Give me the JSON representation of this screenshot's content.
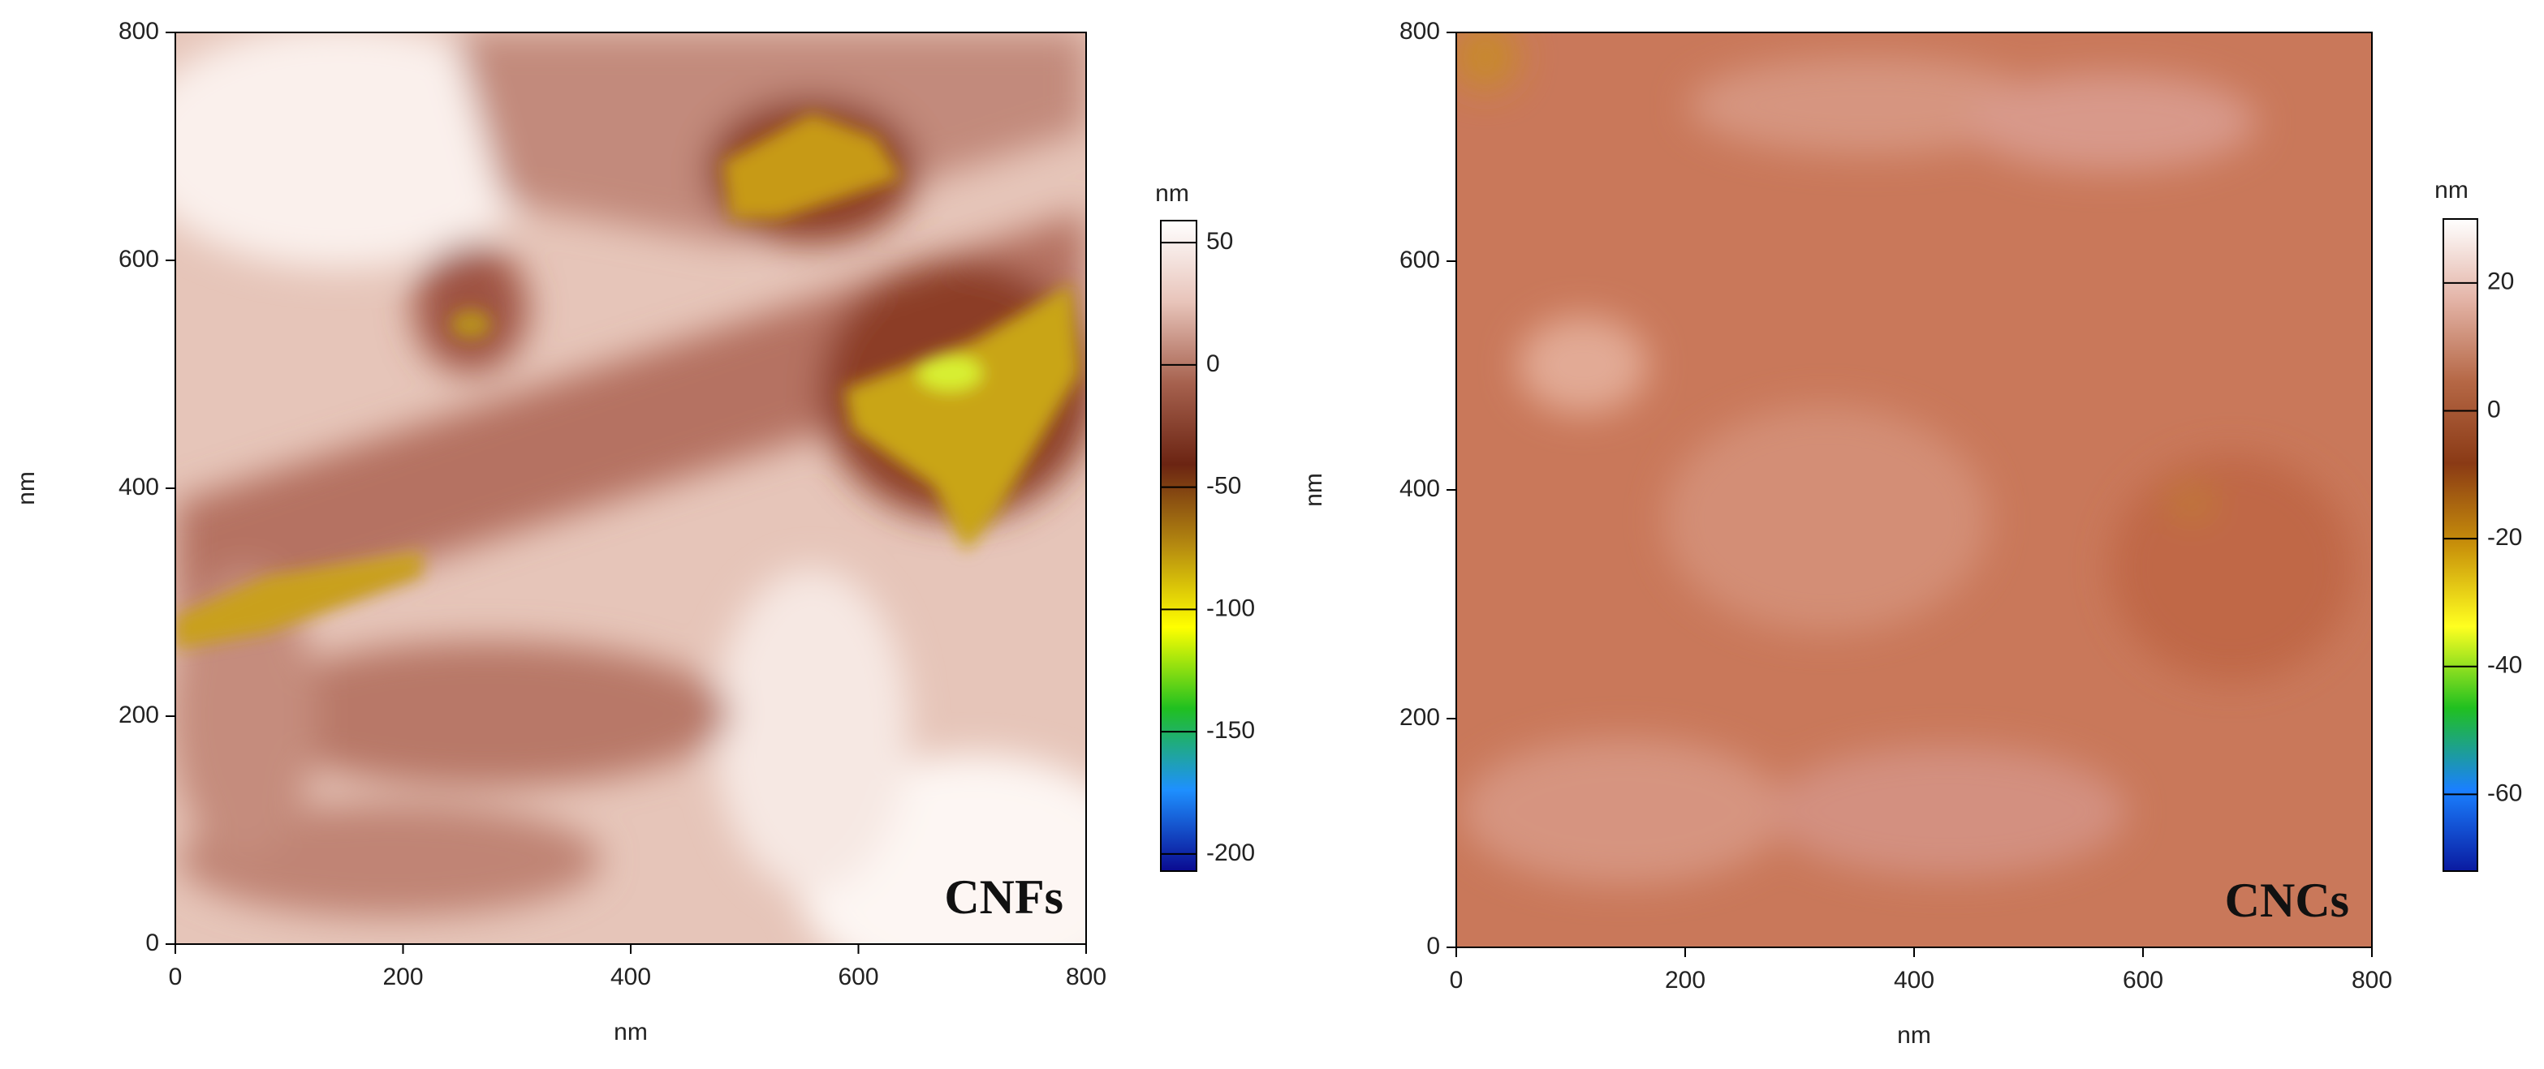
{
  "chart_data": [
    {
      "type": "image",
      "label": "CNFs",
      "xlabel": "nm",
      "ylabel": "nm",
      "xlim": [
        0,
        800
      ],
      "ylim": [
        0,
        800
      ],
      "xticks": [
        0,
        200,
        400,
        600,
        800
      ],
      "yticks": [
        0,
        200,
        400,
        600,
        800
      ],
      "colorbar": {
        "label": "nm",
        "lim": [
          -207,
          59
        ],
        "ticks": [
          50,
          0,
          -50,
          -100,
          -150,
          -200
        ],
        "colors": [
          "#ffffff",
          "#e8c4ba",
          "#a6614e",
          "#6b2412",
          "#b58a10",
          "#ffff00",
          "#20c020",
          "#1e90ff",
          "#0a0a90"
        ]
      }
    },
    {
      "type": "image",
      "label": "CNCs",
      "xlabel": "nm",
      "ylabel": "nm",
      "xlim": [
        0,
        800
      ],
      "ylim": [
        0,
        800
      ],
      "xticks": [
        0,
        200,
        400,
        600,
        800
      ],
      "yticks": [
        0,
        200,
        400,
        600,
        800
      ],
      "colorbar": {
        "label": "nm",
        "lim": [
          -72,
          30
        ],
        "ticks": [
          20,
          0,
          -20,
          -40,
          -60
        ],
        "colors": [
          "#ffffff",
          "#e3b3a6",
          "#b56745",
          "#8a3a15",
          "#c8900a",
          "#ffff20",
          "#20c020",
          "#1a80ff",
          "#0a1aa0"
        ]
      }
    }
  ]
}
